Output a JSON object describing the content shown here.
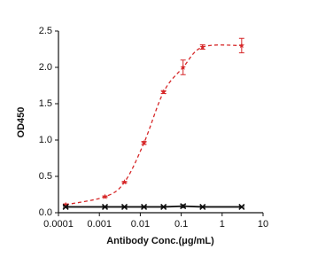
{
  "chart_data": {
    "type": "line",
    "x_label": "Antibody Conc.(μg/mL)",
    "y_label": "OD450",
    "x": [
      0.00015,
      0.00137,
      0.0041,
      0.0123,
      0.037,
      0.111,
      0.333,
      3
    ],
    "x_log": true,
    "xlim": [
      0.0001,
      10
    ],
    "xticks": [
      0.0001,
      0.001,
      0.01,
      0.1,
      1,
      10
    ],
    "ylim": [
      0,
      2.5
    ],
    "yticks": [
      {
        "value": 0,
        "label": "0.0"
      },
      {
        "value": 0.5,
        "label": "0.5"
      },
      {
        "value": 1,
        "label": "1.0"
      },
      {
        "value": 1.5,
        "label": "1.5"
      },
      {
        "value": 2,
        "label": "2.0"
      },
      {
        "value": 2.5,
        "label": "2.5"
      }
    ],
    "series": [
      {
        "color": "#d62728",
        "line_style": "dashed",
        "marker": "star",
        "values": [
          0.11,
          0.22,
          0.42,
          0.96,
          1.66,
          2.0,
          2.28,
          2.3
        ],
        "errors": [
          0.01,
          0.01,
          0.01,
          0.02,
          0.02,
          0.1,
          0.03,
          0.1
        ]
      },
      {
        "color": "#111111",
        "line_style": "solid",
        "marker": "x",
        "values": [
          0.08,
          0.08,
          0.08,
          0.08,
          0.08,
          0.09,
          0.08,
          0.08
        ],
        "errors": [
          0.01,
          0.01,
          0.01,
          0.01,
          0.01,
          0.02,
          0.01,
          0.01
        ]
      }
    ]
  }
}
